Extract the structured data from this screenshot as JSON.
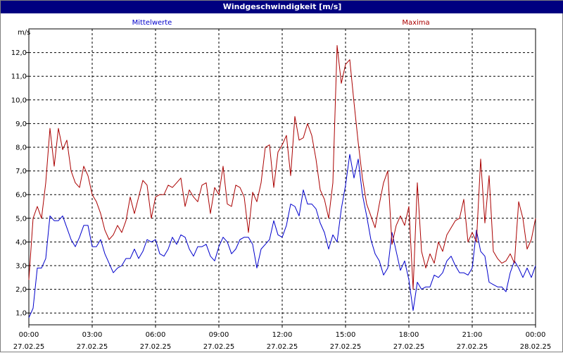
{
  "window": {
    "title": "Windgeschwindigkeit [m/s]"
  },
  "colors": {
    "titlebar": "#000080",
    "mittelwerte": "#0000cc",
    "maxima": "#aa0000",
    "grid": "#000000"
  },
  "chart_data": {
    "type": "line",
    "title": "Windgeschwindigkeit [m/s]",
    "ylabel": "m/s",
    "xlabel": "",
    "ylim": [
      0.5,
      13.0
    ],
    "y_ticks": [
      "1,0",
      "2,0",
      "3,0",
      "4,0",
      "5,0",
      "6,0",
      "7,0",
      "8,0",
      "9,0",
      "10,0",
      "11,0",
      "12,0"
    ],
    "y_tick_values": [
      1,
      2,
      3,
      4,
      5,
      6,
      7,
      8,
      9,
      10,
      11,
      12
    ],
    "x_range_hours": [
      0,
      24
    ],
    "x_ticks": [
      {
        "time": "00:00",
        "date": "27.02.25"
      },
      {
        "time": "03:00",
        "date": "27.02.25"
      },
      {
        "time": "06:00",
        "date": "27.02.25"
      },
      {
        "time": "09:00",
        "date": "27.02.25"
      },
      {
        "time": "12:00",
        "date": "27.02.25"
      },
      {
        "time": "15:00",
        "date": "27.02.25"
      },
      {
        "time": "18:00",
        "date": "27.02.25"
      },
      {
        "time": "21:00",
        "date": "27.02.25"
      },
      {
        "time": "00:00",
        "date": "28.02.25"
      }
    ],
    "grid": true,
    "legend_placement": "top",
    "x_hours": [
      0.0,
      0.2,
      0.4,
      0.6,
      0.8,
      1.0,
      1.2,
      1.4,
      1.6,
      1.8,
      2.0,
      2.2,
      2.4,
      2.6,
      2.8,
      3.0,
      3.2,
      3.4,
      3.6,
      3.8,
      4.0,
      4.2,
      4.4,
      4.6,
      4.8,
      5.0,
      5.2,
      5.4,
      5.6,
      5.8,
      6.0,
      6.2,
      6.4,
      6.6,
      6.8,
      7.0,
      7.2,
      7.4,
      7.6,
      7.8,
      8.0,
      8.2,
      8.4,
      8.6,
      8.8,
      9.0,
      9.2,
      9.4,
      9.6,
      9.8,
      10.0,
      10.2,
      10.4,
      10.6,
      10.8,
      11.0,
      11.2,
      11.4,
      11.6,
      11.8,
      12.0,
      12.2,
      12.4,
      12.6,
      12.8,
      13.0,
      13.2,
      13.4,
      13.6,
      13.8,
      14.0,
      14.2,
      14.4,
      14.6,
      14.8,
      15.0,
      15.2,
      15.4,
      15.6,
      15.8,
      16.0,
      16.2,
      16.4,
      16.6,
      16.8,
      17.0,
      17.2,
      17.4,
      17.6,
      17.8,
      18.0,
      18.2,
      18.4,
      18.6,
      18.8,
      19.0,
      19.2,
      19.4,
      19.6,
      19.8,
      20.0,
      20.2,
      20.4,
      20.6,
      20.8,
      21.0,
      21.2,
      21.4,
      21.6,
      21.8,
      22.0,
      22.2,
      22.4,
      22.6,
      22.8,
      23.0,
      23.2,
      23.4,
      23.6,
      23.8,
      24.0
    ],
    "series": [
      {
        "name": "Mittelwerte",
        "color": "#0000cc",
        "values": [
          0.8,
          1.2,
          2.9,
          2.9,
          3.3,
          5.1,
          4.9,
          4.9,
          5.1,
          4.6,
          4.1,
          3.8,
          4.2,
          4.7,
          4.7,
          3.8,
          3.8,
          4.1,
          3.5,
          3.1,
          2.7,
          2.9,
          3.0,
          3.3,
          3.3,
          3.7,
          3.3,
          3.6,
          4.1,
          4.0,
          4.1,
          3.5,
          3.4,
          3.7,
          4.2,
          3.9,
          4.3,
          4.2,
          3.7,
          3.4,
          3.8,
          3.8,
          3.9,
          3.4,
          3.2,
          3.8,
          4.2,
          4.0,
          3.5,
          3.7,
          4.1,
          4.2,
          4.2,
          3.9,
          2.9,
          3.7,
          3.9,
          4.1,
          4.9,
          4.3,
          4.2,
          4.7,
          5.6,
          5.5,
          5.1,
          6.2,
          5.6,
          5.6,
          5.4,
          4.8,
          4.4,
          3.7,
          4.3,
          4.0,
          5.4,
          6.4,
          7.7,
          6.7,
          7.5,
          6.0,
          5.1,
          4.1,
          3.5,
          3.2,
          2.6,
          2.9,
          4.4,
          3.6,
          2.8,
          3.2,
          2.4,
          1.1,
          2.3,
          2.0,
          2.1,
          2.1,
          2.6,
          2.5,
          2.7,
          3.2,
          3.4,
          3.0,
          2.7,
          2.7,
          2.6,
          2.9,
          4.5,
          3.6,
          3.4,
          2.3,
          2.2,
          2.1,
          2.1,
          1.9,
          2.7,
          3.2,
          2.9,
          2.5,
          2.9,
          2.5,
          3.0
        ]
      },
      {
        "name": "Maxima",
        "color": "#aa0000",
        "values": [
          2.4,
          5.0,
          5.5,
          5.0,
          6.5,
          8.8,
          7.2,
          8.8,
          7.9,
          8.3,
          7.0,
          6.5,
          6.3,
          7.2,
          6.8,
          6.0,
          5.7,
          5.2,
          4.5,
          4.1,
          4.3,
          4.7,
          4.4,
          4.9,
          5.9,
          5.2,
          5.9,
          6.6,
          6.4,
          5.0,
          5.9,
          6.0,
          6.0,
          6.4,
          6.3,
          6.5,
          6.7,
          5.5,
          6.2,
          5.9,
          5.7,
          6.4,
          6.5,
          5.2,
          6.3,
          6.0,
          7.2,
          5.6,
          5.5,
          6.4,
          6.3,
          5.9,
          4.4,
          6.1,
          5.7,
          6.5,
          8.0,
          8.1,
          6.3,
          7.8,
          8.1,
          8.5,
          6.8,
          9.3,
          8.3,
          8.4,
          9.0,
          8.5,
          7.5,
          6.2,
          5.8,
          5.0,
          6.5,
          12.3,
          10.7,
          11.5,
          11.7,
          9.9,
          8.2,
          6.7,
          5.6,
          5.1,
          4.6,
          5.6,
          6.5,
          7.0,
          3.9,
          4.7,
          5.1,
          4.7,
          5.5,
          2.0,
          6.5,
          3.6,
          2.9,
          3.5,
          3.1,
          4.0,
          3.6,
          4.3,
          4.6,
          4.9,
          5.0,
          5.8,
          4.0,
          4.4,
          4.0,
          7.5,
          4.8,
          6.8,
          3.6,
          3.3,
          3.1,
          3.2,
          3.5,
          3.1,
          5.7,
          5.0,
          3.7,
          4.1,
          5.0
        ]
      }
    ]
  }
}
